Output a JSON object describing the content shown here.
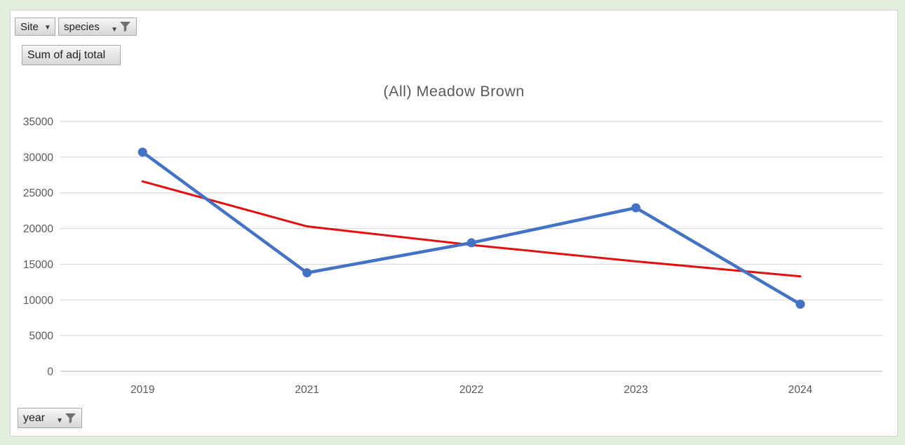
{
  "window": {
    "background_color": "#e2efda",
    "card_background": "#ffffff",
    "card_border_color": "#d2d2d2"
  },
  "pivot_buttons": {
    "site": {
      "label": "Site"
    },
    "species": {
      "label": "species"
    },
    "value": {
      "label": "Sum of adj total"
    },
    "year": {
      "label": "year"
    }
  },
  "icons": {
    "dropdown_chevron": "▼",
    "filter_funnel": "funnel-icon"
  },
  "chart_data": {
    "type": "line",
    "title": "(All) Meadow Brown",
    "categories": [
      "2019",
      "2021",
      "2022",
      "2023",
      "2024"
    ],
    "series": [
      {
        "name": "Sum of adj total",
        "style": "line-with-markers",
        "color": "#4472c4",
        "values": [
          30700,
          13800,
          18000,
          22900,
          9400
        ]
      },
      {
        "name": "trendline",
        "style": "trendline",
        "color": "#e60e0e",
        "values": [
          26600,
          20300,
          17700,
          15400,
          13300
        ]
      }
    ],
    "y_axis": {
      "min": 0,
      "max": 35000,
      "step": 5000,
      "tick_labels": [
        "0",
        "5000",
        "10000",
        "15000",
        "20000",
        "25000",
        "30000",
        "35000"
      ]
    },
    "x_axis": {
      "tick_labels": [
        "2019",
        "2021",
        "2022",
        "2023",
        "2024"
      ]
    },
    "grid": true,
    "legend": "none",
    "gridline_color": "#d9d9d9",
    "axis_line_color": "#c0c0c0",
    "axis_text_color": "#595959",
    "title_color": "#595959"
  }
}
